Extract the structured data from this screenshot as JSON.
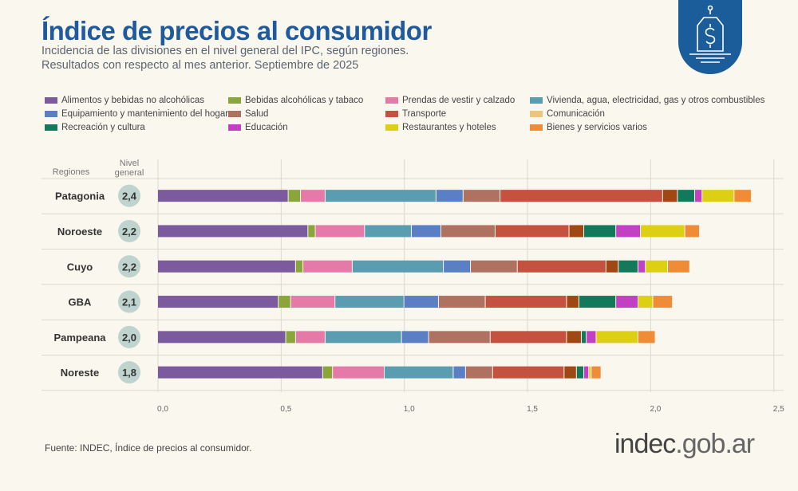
{
  "header": {
    "title": "Índice de precios al consumidor",
    "subtitle1": "Incidencia de las divisiones en el nivel general del IPC, según regiones.",
    "subtitle2": "Resultados con respecto al mes anterior. Septiembre de 2025",
    "logo_icon": "price-tag-dollar-icon"
  },
  "footer": {
    "source": "Fuente: INDEC, Índice de precios al consumidor.",
    "brand_main": "indec",
    "brand_rest": ".gob.ar"
  },
  "chart_data": {
    "type": "bar",
    "orientation": "horizontal",
    "stacked": true,
    "xlim": [
      0,
      2.5
    ],
    "x_ticks": [
      "0,0",
      "0,5",
      "1,0",
      "1,5",
      "2,0",
      "2,5"
    ],
    "x_tick_values": [
      0,
      0.5,
      1,
      1.5,
      2,
      2.5
    ],
    "grid": true,
    "legend_position": "top",
    "column_headers": {
      "regions": "Regiones",
      "level": "Nivel general"
    },
    "categories": [
      "Patagonia",
      "Noroeste",
      "Cuyo",
      "GBA",
      "Pampeana",
      "Noreste"
    ],
    "nivel_general": [
      "2,4",
      "2,2",
      "2,2",
      "2,1",
      "2,0",
      "1,8"
    ],
    "series": [
      {
        "name": "Alimentos y bebidas no alcohólicas",
        "color": "#7b5a9e",
        "legend_color": "#7b5a9e",
        "values": [
          0.53,
          0.61,
          0.56,
          0.49,
          0.52,
          0.67
        ]
      },
      {
        "name": "Bebidas alcohólicas y tabaco",
        "color": "#8aa63a",
        "legend_color": "#8aa63a",
        "values": [
          0.05,
          0.03,
          0.03,
          0.05,
          0.04,
          0.04
        ]
      },
      {
        "name": "Prendas de vestir y calzado",
        "color": "#e57aa8",
        "legend_color": "#e57aa8",
        "values": [
          0.1,
          0.2,
          0.2,
          0.18,
          0.12,
          0.21
        ]
      },
      {
        "name": "Vivienda, agua, electricidad, gas y otros combustibles",
        "color": "#5b9db0",
        "legend_color": "#5b9db0",
        "values": [
          0.45,
          0.19,
          0.37,
          0.28,
          0.31,
          0.28
        ]
      },
      {
        "name": "Equipamiento y mantenimiento del hogar",
        "color": "#5a7fc4",
        "legend_color": "#5a7fc4",
        "values": [
          0.11,
          0.12,
          0.11,
          0.14,
          0.11,
          0.05
        ]
      },
      {
        "name": "Salud",
        "color": "#b07260",
        "legend_color": "#b07260",
        "values": [
          0.15,
          0.22,
          0.19,
          0.19,
          0.25,
          0.11
        ]
      },
      {
        "name": "Transporte",
        "color": "#c4523f",
        "legend_color": "#c4523f",
        "values": [
          0.66,
          0.3,
          0.36,
          0.33,
          0.31,
          0.29
        ]
      },
      {
        "name": "Comunicación",
        "color": "#a04814",
        "legend_color": "#ebc47e",
        "values": [
          0.06,
          0.06,
          0.05,
          0.05,
          0.06,
          0.05
        ]
      },
      {
        "name": "Recreación y cultura",
        "color": "#127a5a",
        "legend_color": "#127a5a",
        "values": [
          0.07,
          0.13,
          0.08,
          0.15,
          0.02,
          0.03
        ]
      },
      {
        "name": "Educación",
        "color": "#c140c4",
        "legend_color": "#c140c4",
        "values": [
          0.03,
          0.1,
          0.03,
          0.09,
          0.04,
          0.02
        ]
      },
      {
        "name": "Restaurantes y hoteles",
        "color": "#dccf14",
        "legend_color": "#dccf14",
        "values": [
          0.13,
          0.18,
          0.09,
          0.06,
          0.17,
          0.01
        ]
      },
      {
        "name": "Bienes y servicios varios",
        "color": "#f08c38",
        "legend_color": "#f08c38",
        "values": [
          0.07,
          0.06,
          0.09,
          0.08,
          0.07,
          0.04
        ]
      }
    ]
  }
}
